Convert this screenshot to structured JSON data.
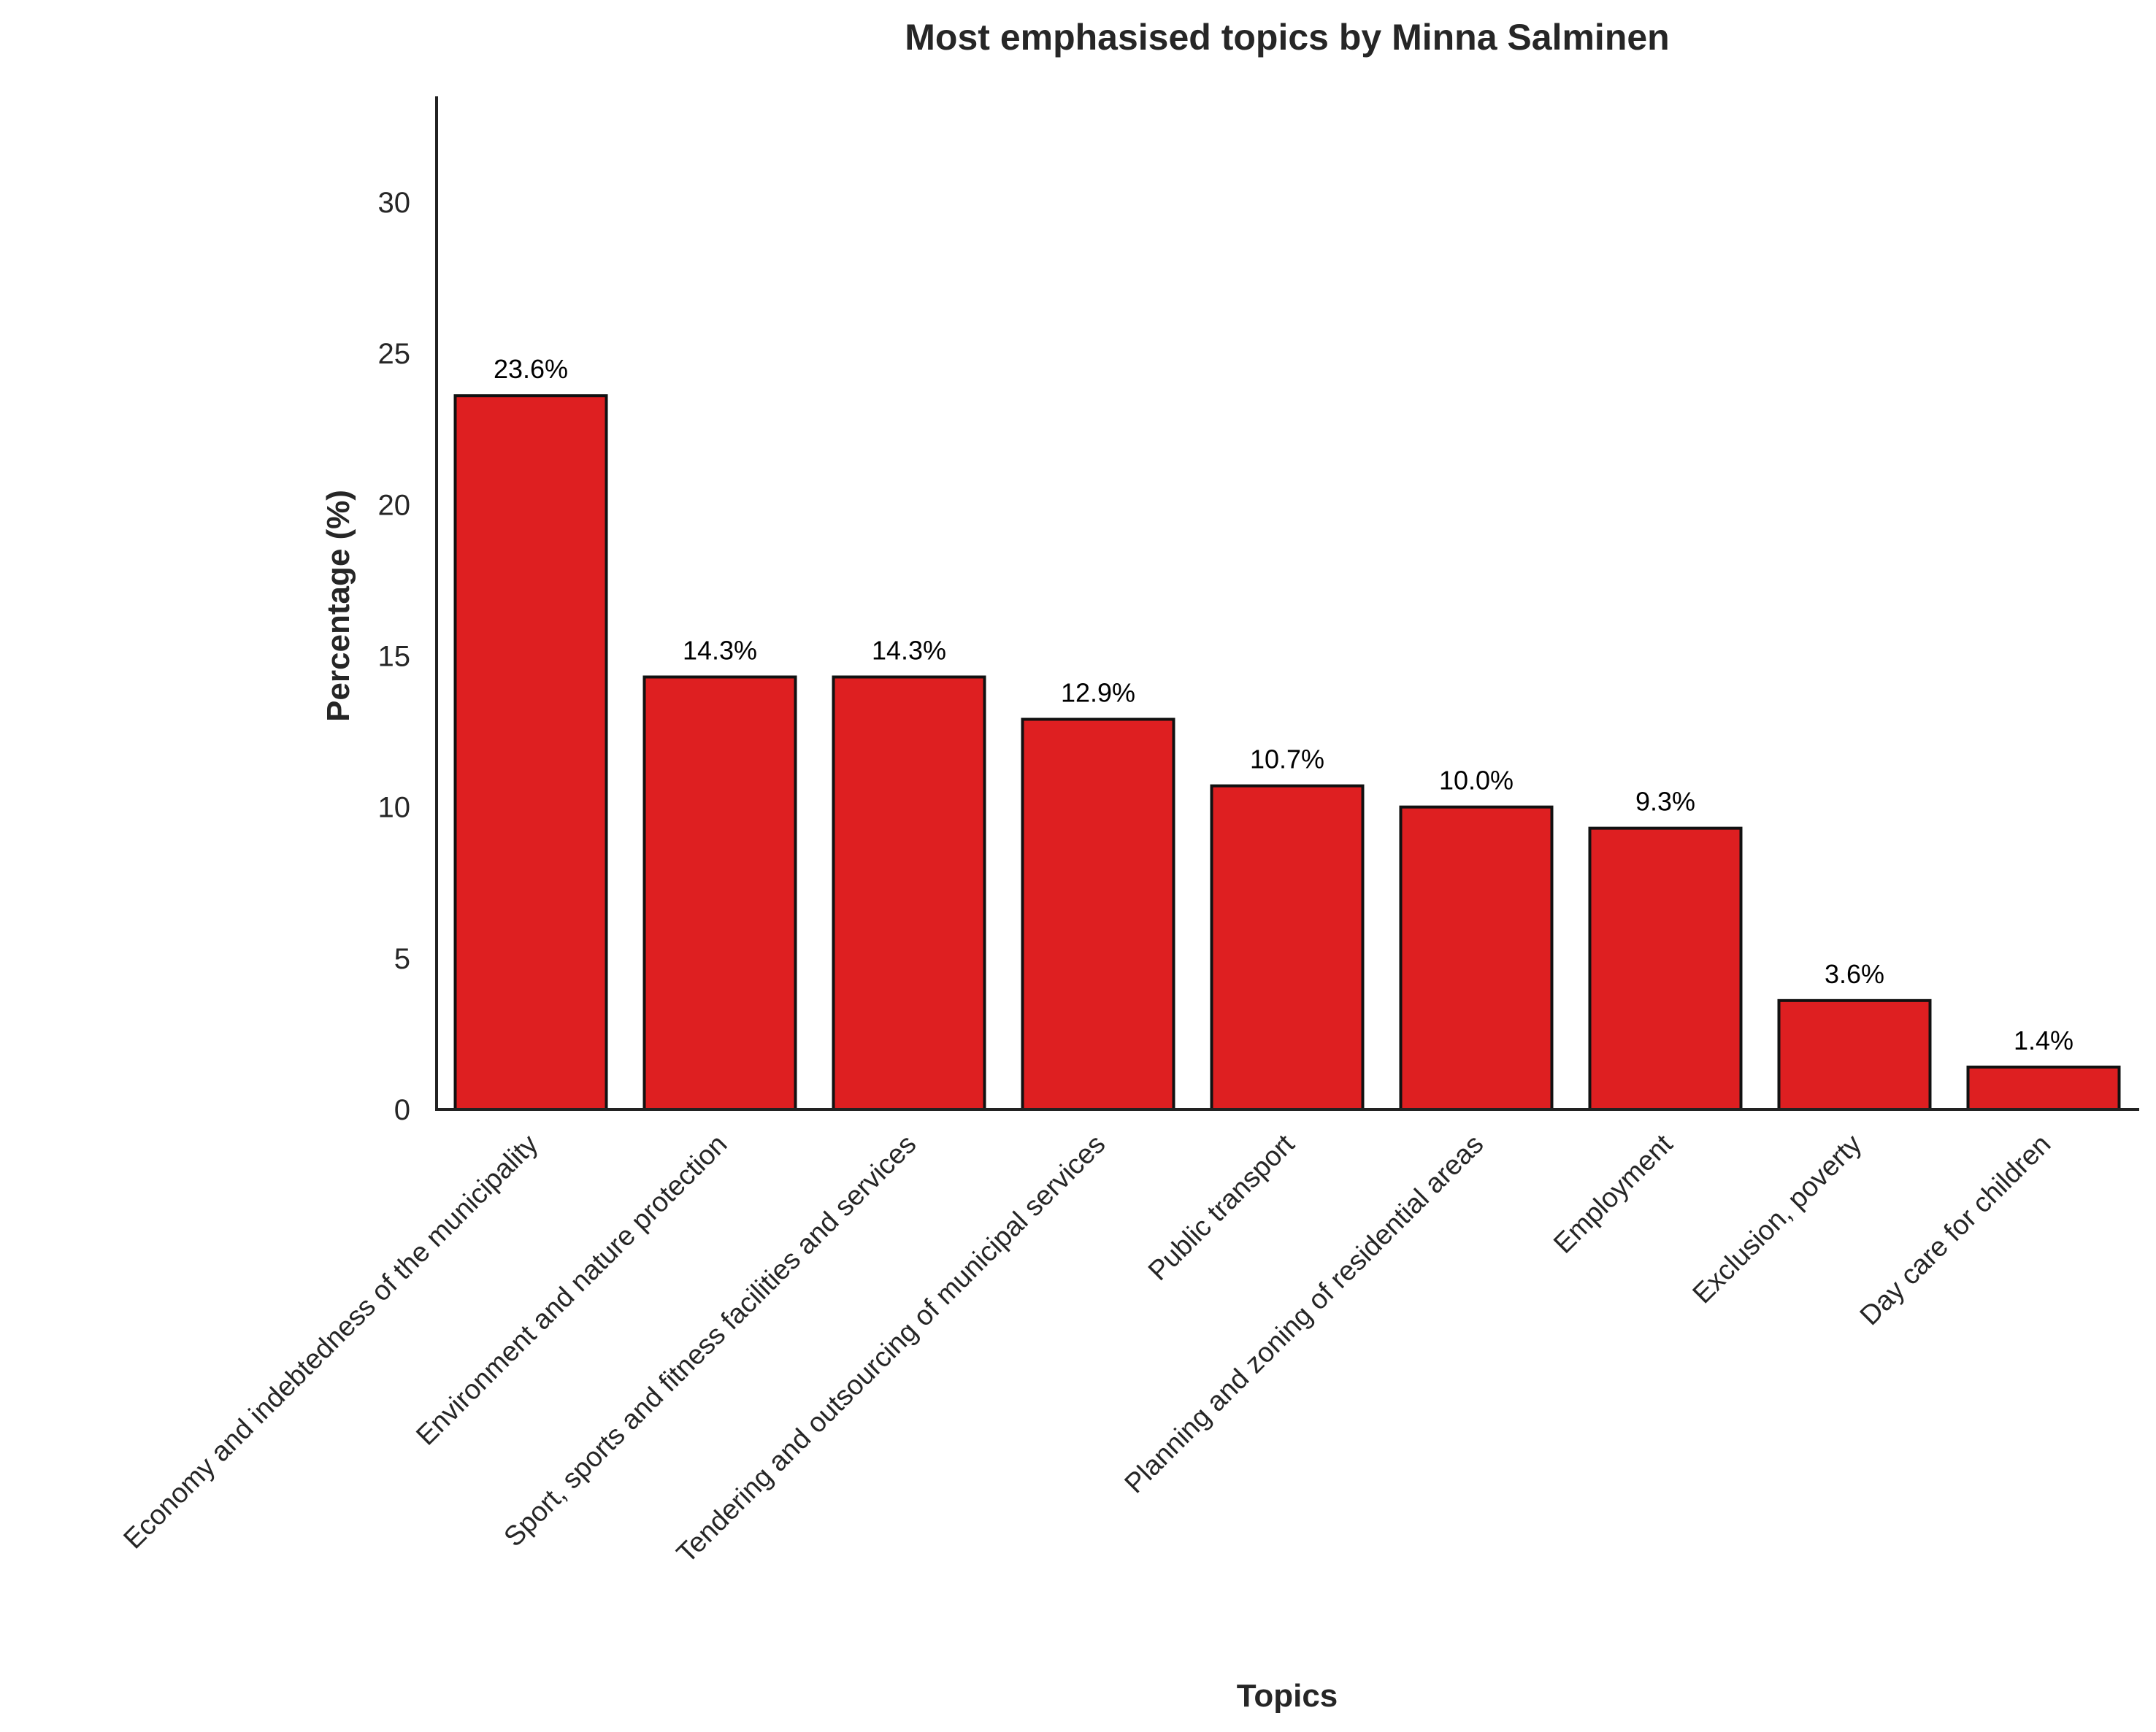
{
  "chart_data": {
    "type": "bar",
    "title": "Most emphasised topics by Minna Salminen",
    "xlabel": "Topics",
    "ylabel": "Percentage (%)",
    "categories": [
      "Economy and indebtedness of the municipality",
      "Environment and nature protection",
      "Sport, sports and fitness facilities and services",
      "Tendering and outsourcing of municipal services",
      "Public transport",
      "Planning and zoning of residential areas",
      "Employment",
      "Exclusion, poverty",
      "Day care for children"
    ],
    "values": [
      23.6,
      14.3,
      14.3,
      12.9,
      10.7,
      10.0,
      9.3,
      3.6,
      1.4
    ],
    "data_labels": [
      "23.6%",
      "14.3%",
      "14.3%",
      "12.9%",
      "10.7%",
      "10.0%",
      "9.3%",
      "3.6%",
      "1.4%"
    ],
    "yticks": [
      "0",
      "5",
      "10",
      "15",
      "20",
      "25",
      "30"
    ],
    "ylim": [
      0,
      33.5
    ],
    "grid": false,
    "bar_color": "#de1f21",
    "edge_color": "#111111"
  }
}
